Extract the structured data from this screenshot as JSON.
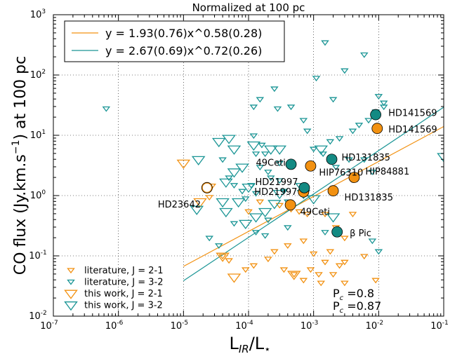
{
  "chart_data": {
    "type": "scatter",
    "title": "Normalized at 100 pc",
    "xlabel": "L_IR/L_⋆",
    "ylabel": "CO flux (Jy.km.s⁻¹) at 100 pc",
    "x_scale": "log",
    "y_scale": "log",
    "xlim": [
      1e-07,
      0.1
    ],
    "ylim": [
      0.01,
      1000
    ],
    "grid": true,
    "x_ticks": [
      {
        "v": 1e-07,
        "base": "10",
        "exp": "-7"
      },
      {
        "v": 1e-06,
        "base": "10",
        "exp": "-6"
      },
      {
        "v": 1e-05,
        "base": "10",
        "exp": "-5"
      },
      {
        "v": 0.0001,
        "base": "10",
        "exp": "-4"
      },
      {
        "v": 0.001,
        "base": "10",
        "exp": "-3"
      },
      {
        "v": 0.01,
        "base": "10",
        "exp": "-2"
      },
      {
        "v": 0.1,
        "base": "10",
        "exp": "-1"
      }
    ],
    "y_ticks": [
      {
        "v": 0.01,
        "base": "10",
        "exp": "-2"
      },
      {
        "v": 0.1,
        "base": "10",
        "exp": "-1"
      },
      {
        "v": 1,
        "base": "10",
        "exp": "0"
      },
      {
        "v": 10,
        "base": "10",
        "exp": "1"
      },
      {
        "v": 100,
        "base": "10",
        "exp": "2"
      },
      {
        "v": 1000,
        "base": "10",
        "exp": "3"
      }
    ],
    "fit_lines": [
      {
        "label": "y = 1.93(0.76)x^0.58(0.28)",
        "a": 1.93,
        "b": 0.58,
        "color": "#f29111",
        "x_range": [
          1e-05,
          0.1
        ]
      },
      {
        "label": "y = 2.67(0.69)x^0.72(0.26)",
        "a": 2.67,
        "b": 0.72,
        "color": "#1a9595",
        "x_range": [
          1e-05,
          0.1
        ]
      }
    ],
    "legend_bottom": {
      "lit21": "literature, J = 2-1",
      "lit32": "literature, J = 3-2",
      "this21": "this work, J = 2-1",
      "this32": "this work, J = 3-2"
    },
    "pc_labels": [
      "P_c = 0.8",
      "P_c = 0.87"
    ],
    "colors": {
      "orange": "#f29111",
      "teal": "#1a9595",
      "tealFill": "#138a83"
    },
    "series": {
      "lit21": [
        [
          2.5e-05,
          0.95
        ],
        [
          0.00015,
          0.8
        ],
        [
          0.0003,
          0.7
        ],
        [
          0.00045,
          0.6
        ],
        [
          0.0006,
          0.55
        ],
        [
          0.0001,
          0.55
        ],
        [
          4e-05,
          0.1
        ],
        [
          5e-05,
          0.085
        ],
        [
          9e-05,
          0.06
        ],
        [
          0.00012,
          0.07
        ],
        [
          0.0002,
          0.09
        ],
        [
          0.00035,
          0.06
        ],
        [
          0.0005,
          0.05
        ],
        [
          0.0007,
          0.04
        ],
        [
          0.0009,
          0.06
        ],
        [
          0.0012,
          0.05
        ],
        [
          0.0015,
          0.08
        ],
        [
          0.002,
          0.05
        ],
        [
          0.0025,
          0.07
        ],
        [
          0.003,
          0.08
        ],
        [
          0.0018,
          0.12
        ],
        [
          0.006,
          0.1
        ],
        [
          0.009,
          0.04
        ],
        [
          0.0004,
          0.15
        ],
        [
          0.00025,
          0.12
        ],
        [
          0.0008,
          0.5
        ],
        [
          0.0015,
          0.5
        ],
        [
          0.0022,
          0.3
        ],
        [
          0.003,
          0.2
        ],
        [
          0.004,
          0.5
        ],
        [
          0.0007,
          0.18
        ],
        [
          0.001,
          0.11
        ],
        [
          0.003,
          0.036
        ],
        [
          0.0013,
          0.036
        ]
      ],
      "lit32": [
        [
          6.5e-07,
          28
        ],
        [
          0.00012,
          30
        ],
        [
          0.00015,
          40
        ],
        [
          0.00028,
          28
        ],
        [
          0.0011,
          90
        ],
        [
          0.0015,
          350
        ],
        [
          0.002,
          40
        ],
        [
          0.003,
          120
        ],
        [
          0.004,
          12
        ],
        [
          0.005,
          15
        ],
        [
          0.006,
          220
        ],
        [
          0.007,
          18
        ],
        [
          0.009,
          25
        ],
        [
          0.01,
          45
        ],
        [
          0.012,
          35
        ],
        [
          0.00025,
          60
        ],
        [
          0.00045,
          30
        ],
        [
          0.0007,
          18
        ],
        [
          0.0008,
          12
        ],
        [
          0.001,
          6
        ],
        [
          0.0018,
          8
        ],
        [
          0.0025,
          9
        ],
        [
          0.0035,
          4
        ],
        [
          0.006,
          4
        ],
        [
          0.008,
          2.5
        ],
        [
          0.00015,
          3
        ],
        [
          0.0002,
          2.5
        ],
        [
          0.0003,
          1.8
        ],
        [
          4e-05,
          4
        ],
        [
          5e-05,
          2
        ],
        [
          6e-05,
          1.5
        ],
        [
          8e-05,
          1.2
        ],
        [
          9e-05,
          0.9
        ],
        [
          0.00011,
          1.5
        ],
        [
          0.00013,
          1.1
        ],
        [
          0.00022,
          2
        ],
        [
          0.0003,
          3.5
        ],
        [
          0.00035,
          1.2
        ],
        [
          0.0004,
          0.8
        ],
        [
          0.0006,
          1.5
        ],
        [
          0.00012,
          10
        ],
        [
          0.00016,
          7
        ],
        [
          0.00013,
          5
        ],
        [
          0.00018,
          5
        ],
        [
          2.5e-05,
          0.2
        ],
        [
          3.5e-05,
          0.15
        ],
        [
          6e-05,
          0.35
        ],
        [
          0.00013,
          0.25
        ],
        [
          0.00018,
          0.22
        ],
        [
          0.0015,
          0.25
        ],
        [
          0.008,
          0.18
        ],
        [
          0.01,
          0.12
        ],
        [
          0.0002,
          0.4
        ],
        [
          0.0004,
          0.3
        ],
        [
          0.012,
          30
        ],
        [
          0.0014,
          5
        ],
        [
          0.0022,
          3
        ]
      ],
      "this21": [
        [
          1e-05,
          3.5
        ],
        [
          1.8e-05,
          0.8
        ],
        [
          2.5e-05,
          1.4
        ],
        [
          6e-05,
          0.045
        ],
        [
          0.0005,
          0.05
        ],
        [
          4e-05,
          0.1
        ]
      ],
      "this32": [
        [
          1.6e-05,
          0.6
        ],
        [
          4e-05,
          0.8
        ],
        [
          4.5e-05,
          0.55
        ],
        [
          5e-05,
          9
        ],
        [
          8e-05,
          3
        ],
        [
          0.0001,
          1.4
        ],
        [
          7e-05,
          0.8
        ],
        [
          9e-05,
          0.35
        ],
        [
          0.00013,
          0.45
        ],
        [
          0.00018,
          0.55
        ],
        [
          0.00025,
          0.75
        ],
        [
          0.0003,
          1.1
        ],
        [
          6e-05,
          6
        ],
        [
          0.00012,
          7
        ],
        [
          3.5e-05,
          8
        ],
        [
          0.00022,
          6
        ],
        [
          0.0003,
          6
        ],
        [
          1.7e-05,
          4
        ],
        [
          0.0013,
          6
        ],
        [
          6e-05,
          2.5
        ],
        [
          4.5e-05,
          1.7
        ],
        [
          0.0007,
          1.1
        ],
        [
          0.001,
          0.9
        ],
        [
          0.002,
          0.45
        ],
        [
          0.1,
          4.5
        ]
      ],
      "orange_filled": [
        {
          "x": 0.00044,
          "y": 0.7,
          "label": "49Ceti",
          "ldx": 6,
          "ldy": 14
        },
        {
          "x": 0.0007,
          "y": 1.15,
          "label": "HD21997",
          "ldx": -78,
          "ldy": 4
        },
        {
          "x": 0.0009,
          "y": 3.1,
          "label": "HIP76310",
          "ldx": 4,
          "ldy": 14
        },
        {
          "x": 0.002,
          "y": 1.2,
          "label": "HD131835",
          "ldx": 8,
          "ldy": 14
        },
        {
          "x": 0.0042,
          "y": 2.0,
          "label": "HIP84881",
          "ldx": 8,
          "ldy": -4
        },
        {
          "x": 0.0095,
          "y": 13,
          "label": "HD141569",
          "ldx": 8,
          "ldy": 6
        }
      ],
      "teal_filled": [
        {
          "x": 0.00045,
          "y": 3.3,
          "label": "49Ceti",
          "ldx": -58,
          "ldy": 2
        },
        {
          "x": 0.00072,
          "y": 1.35,
          "label": "HD21997",
          "ldx": -78,
          "ldy": -4
        },
        {
          "x": 0.0019,
          "y": 4.0,
          "label": "HD131835",
          "ldx": 6,
          "ldy": 2
        },
        {
          "x": 0.009,
          "y": 22,
          "label": "HD141569",
          "ldx": 10,
          "ldy": 2
        },
        {
          "x": 0.0023,
          "y": 0.25,
          "label": "β Pic",
          "ldx": 10,
          "ldy": 6
        }
      ],
      "orange_open": [
        {
          "x": 2.3e-05,
          "y": 1.35,
          "label": "HD23642",
          "ldx": -78,
          "ldy": 28
        }
      ]
    }
  }
}
